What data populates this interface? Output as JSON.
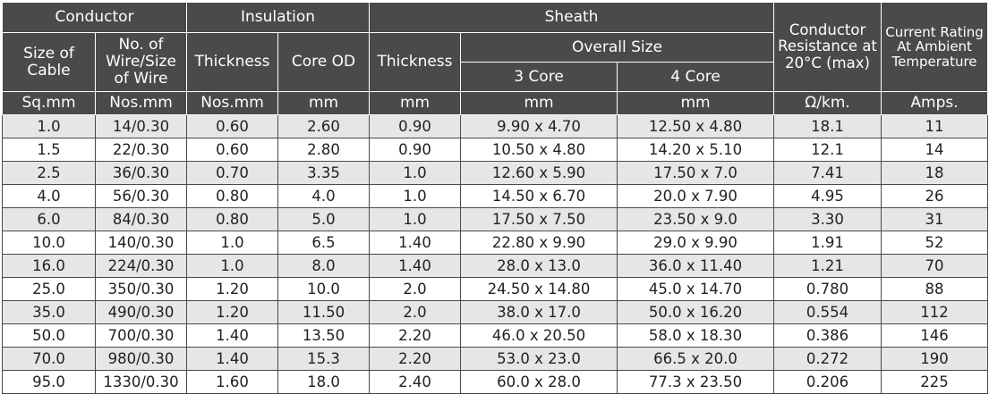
{
  "groups": {
    "conductor": "Conductor",
    "insulation": "Insulation",
    "sheath": "Sheath",
    "resistance": "Conductor Resistance at 20°C (max)",
    "current": "Current Rating At Ambient Temperature"
  },
  "subheaders": {
    "size_of_cable": "Size of Cable",
    "no_of_wire": "No. of Wire/Size of Wire",
    "ins_thickness": "Thickness",
    "core_od": "Core OD",
    "sheath_thickness": "Thickness",
    "overall_size": "Overall Size",
    "three_core": "3 Core",
    "four_core": "4 Core"
  },
  "units": [
    "Sq.mm",
    "Nos.mm",
    "Nos.mm",
    "mm",
    "mm",
    "mm",
    "mm",
    "Ω/km.",
    "Amps."
  ],
  "rows": [
    [
      "1.0",
      "14/0.30",
      "0.60",
      "2.60",
      "0.90",
      "9.90 x 4.70",
      "12.50 x 4.80",
      "18.1",
      "11"
    ],
    [
      "1.5",
      "22/0.30",
      "0.60",
      "2.80",
      "0.90",
      "10.50 x 4.80",
      "14.20 x 5.10",
      "12.1",
      "14"
    ],
    [
      "2.5",
      "36/0.30",
      "0.70",
      "3.35",
      "1.0",
      "12.60 x 5.90",
      "17.50 x 7.0",
      "7.41",
      "18"
    ],
    [
      "4.0",
      "56/0.30",
      "0.80",
      "4.0",
      "1.0",
      "14.50 x 6.70",
      "20.0 x 7.90",
      "4.95",
      "26"
    ],
    [
      "6.0",
      "84/0.30",
      "0.80",
      "5.0",
      "1.0",
      "17.50 x 7.50",
      "23.50 x 9.0",
      "3.30",
      "31"
    ],
    [
      "10.0",
      "140/0.30",
      "1.0",
      "6.5",
      "1.40",
      "22.80 x 9.90",
      "29.0 x 9.90",
      "1.91",
      "52"
    ],
    [
      "16.0",
      "224/0.30",
      "1.0",
      "8.0",
      "1.40",
      "28.0 x 13.0",
      "36.0 x 11.40",
      "1.21",
      "70"
    ],
    [
      "25.0",
      "350/0.30",
      "1.20",
      "10.0",
      "2.0",
      "24.50 x 14.80",
      "45.0 x 14.70",
      "0.780",
      "88"
    ],
    [
      "35.0",
      "490/0.30",
      "1.20",
      "11.50",
      "2.0",
      "38.0 x 17.0",
      "50.0 x 16.20",
      "0.554",
      "112"
    ],
    [
      "50.0",
      "700/0.30",
      "1.40",
      "13.50",
      "2.20",
      "46.0 x 20.50",
      "58.0 x 18.30",
      "0.386",
      "146"
    ],
    [
      "70.0",
      "980/0.30",
      "1.40",
      "15.3",
      "2.20",
      "53.0 x 23.0",
      "66.5 x 20.0",
      "0.272",
      "190"
    ],
    [
      "95.0",
      "1330/0.30",
      "1.60",
      "18.0",
      "2.40",
      "60.0 x 28.0",
      "77.3 x 23.50",
      "0.206",
      "225"
    ]
  ]
}
